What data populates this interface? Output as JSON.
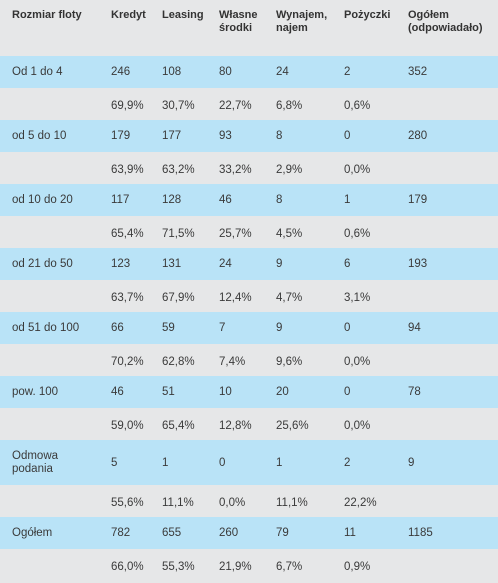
{
  "headers": {
    "col0": "Rozmiar floty",
    "col1": "Kredyt",
    "col2": "Leasing",
    "col3_line1": "Własne",
    "col3_line2": "środki",
    "col4_line1": "Wynajem,",
    "col4_line2": "najem",
    "col5": "Pożyczki",
    "col6_line1": "Ogółem",
    "col6_line2": "(odpowiadało)"
  },
  "rows": [
    {
      "label": "Od 1 do 4",
      "counts": [
        "246",
        "108",
        "80",
        "24",
        "2",
        "352"
      ],
      "pcts": [
        "69,9%",
        "30,7%",
        "22,7%",
        "6,8%",
        "0,6%"
      ]
    },
    {
      "label": "od 5 do 10",
      "counts": [
        "179",
        "177",
        "93",
        "8",
        "0",
        "280"
      ],
      "pcts": [
        "63,9%",
        "63,2%",
        "33,2%",
        "2,9%",
        "0,0%"
      ]
    },
    {
      "label": "od 10 do 20",
      "counts": [
        "117",
        "128",
        "46",
        "8",
        "1",
        "179"
      ],
      "pcts": [
        "65,4%",
        "71,5%",
        "25,7%",
        "4,5%",
        "0,6%"
      ]
    },
    {
      "label": "od 21 do 50",
      "counts": [
        "123",
        "131",
        "24",
        "9",
        "6",
        "193"
      ],
      "pcts": [
        "63,7%",
        "67,9%",
        "12,4%",
        "4,7%",
        "3,1%"
      ]
    },
    {
      "label": "od 51 do 100",
      "counts": [
        "66",
        "59",
        "7",
        "9",
        "0",
        "94"
      ],
      "pcts": [
        "70,2%",
        "62,8%",
        "7,4%",
        "9,6%",
        "0,0%"
      ]
    },
    {
      "label": "pow. 100",
      "counts": [
        "46",
        "51",
        "10",
        "20",
        "0",
        "78"
      ],
      "pcts": [
        "59,0%",
        "65,4%",
        "12,8%",
        "25,6%",
        "0,0%"
      ]
    },
    {
      "label_line1": "Odmowa",
      "label_line2": "podania",
      "counts": [
        "5",
        "1",
        "0",
        "1",
        "2",
        "9"
      ],
      "pcts": [
        "55,6%",
        "11,1%",
        "0,0%",
        "11,1%",
        "22,2%"
      ]
    },
    {
      "label": "Ogółem",
      "counts": [
        "782",
        "655",
        "260",
        "79",
        "11",
        "1185"
      ],
      "pcts": [
        "66,0%",
        "55,3%",
        "21,9%",
        "6,7%",
        "0,9%"
      ]
    }
  ]
}
